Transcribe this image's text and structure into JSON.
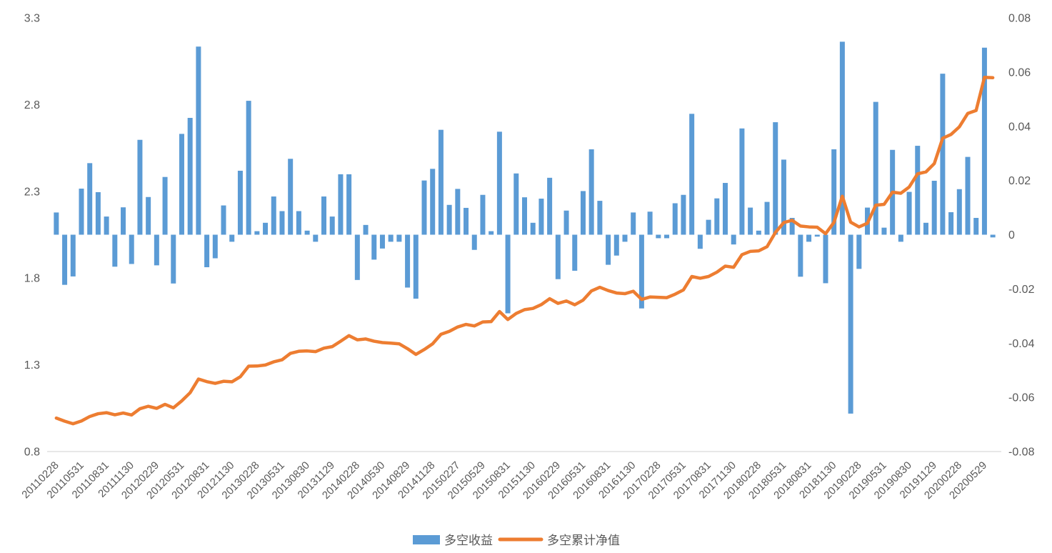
{
  "chart_data": {
    "type": "combo-bar-line",
    "title": "",
    "n_points": 113,
    "tick_every": 3,
    "legend_position": "bottom",
    "grid": "off",
    "bar_series": {
      "name": "多空收益",
      "axis": "right",
      "color": "#5B9BD5",
      "values": [
        0.0082,
        -0.0185,
        -0.0154,
        0.017,
        0.0264,
        0.0157,
        0.0067,
        -0.0118,
        0.0101,
        -0.0108,
        0.035,
        0.0139,
        -0.0113,
        0.0213,
        -0.018,
        0.0372,
        0.0431,
        0.0694,
        -0.012,
        -0.0087,
        0.0108,
        -0.0026,
        0.0236,
        0.0494,
        0.0013,
        0.0044,
        0.0141,
        0.0087,
        0.028,
        0.0087,
        0.0015,
        -0.0026,
        0.0141,
        0.0067,
        0.0223,
        0.0223,
        -0.0167,
        0.0036,
        -0.0092,
        -0.0051,
        -0.0026,
        -0.0026,
        -0.0195,
        -0.0236,
        0.02,
        0.0243,
        0.0387,
        0.011,
        0.0169,
        0.0099,
        -0.0056,
        0.0147,
        0.0013,
        0.038,
        -0.029,
        0.0226,
        0.0138,
        0.0044,
        0.0133,
        0.021,
        -0.0164,
        0.0089,
        -0.0133,
        0.0161,
        0.0315,
        0.0125,
        -0.0111,
        -0.0077,
        -0.0026,
        0.0082,
        -0.0272,
        0.0085,
        -0.0013,
        -0.0013,
        0.0116,
        0.0147,
        0.0446,
        -0.0052,
        0.0055,
        0.0134,
        0.0191,
        -0.0036,
        0.0392,
        0.01,
        0.0015,
        0.0121,
        0.0415,
        0.0277,
        0.0062,
        -0.0155,
        -0.0026,
        -0.0007,
        -0.0179,
        0.0315,
        0.0712,
        -0.066,
        -0.0126,
        0.01,
        0.049,
        0.0026,
        0.0313,
        -0.0026,
        0.0158,
        0.0328,
        0.0044,
        0.0199,
        0.0594,
        0.0083,
        0.0168,
        0.0287,
        0.0062,
        0.069,
        -0.001
      ]
    },
    "line_series": {
      "name": "多空累计净值",
      "axis": "left",
      "color": "#ED7D31",
      "values": [
        0.993,
        0.975,
        0.96,
        0.976,
        1.002,
        1.018,
        1.024,
        1.012,
        1.022,
        1.011,
        1.047,
        1.061,
        1.049,
        1.072,
        1.052,
        1.092,
        1.139,
        1.218,
        1.203,
        1.193,
        1.205,
        1.202,
        1.231,
        1.292,
        1.293,
        1.299,
        1.317,
        1.329,
        1.366,
        1.378,
        1.38,
        1.376,
        1.396,
        1.405,
        1.436,
        1.468,
        1.444,
        1.449,
        1.436,
        1.428,
        1.425,
        1.421,
        1.393,
        1.36,
        1.388,
        1.421,
        1.476,
        1.493,
        1.518,
        1.533,
        1.524,
        1.547,
        1.549,
        1.607,
        1.561,
        1.596,
        1.618,
        1.625,
        1.647,
        1.681,
        1.654,
        1.668,
        1.646,
        1.673,
        1.726,
        1.747,
        1.728,
        1.714,
        1.71,
        1.724,
        1.677,
        1.691,
        1.689,
        1.687,
        1.707,
        1.732,
        1.809,
        1.799,
        1.809,
        1.834,
        1.869,
        1.862,
        1.935,
        1.954,
        1.957,
        1.981,
        2.063,
        2.12,
        2.133,
        2.1,
        2.095,
        2.093,
        2.056,
        2.121,
        2.272,
        2.122,
        2.095,
        2.116,
        2.22,
        2.225,
        2.295,
        2.289,
        2.325,
        2.401,
        2.412,
        2.46,
        2.606,
        2.628,
        2.672,
        2.749,
        2.766,
        2.957,
        2.955
      ]
    },
    "x_tick_labels": [
      "20110228",
      "20110531",
      "20110831",
      "20111130",
      "20120229",
      "20120531",
      "20120831",
      "20121130",
      "20130228",
      "20130531",
      "20130830",
      "20131129",
      "20140228",
      "20140530",
      "20140829",
      "20141128",
      "20150227",
      "20150529",
      "20150831",
      "20151130",
      "20160229",
      "20160531",
      "20160831",
      "20161130",
      "20170228",
      "20170531",
      "20170831",
      "20171130",
      "20180228",
      "20180531",
      "20180831",
      "20181130",
      "20190228",
      "20190531",
      "20190830",
      "20191129",
      "20200228",
      "20200529"
    ],
    "left_axis": {
      "min": 0.8,
      "max": 3.3,
      "ticks": [
        "3.3",
        "2.8",
        "2.3",
        "1.8",
        "1.3",
        "0.8"
      ]
    },
    "right_axis": {
      "min": -0.08,
      "max": 0.08,
      "ticks": [
        "0.08",
        "0.06",
        "0.04",
        "0.02",
        "0",
        "-0.02",
        "-0.04",
        "-0.06",
        "-0.08"
      ]
    },
    "axis_line_color": "#d9d9d9",
    "label_color": "#595959",
    "legend": [
      {
        "label": "多空收益",
        "type": "bar",
        "color": "#5B9BD5"
      },
      {
        "label": "多空累计净值",
        "type": "line",
        "color": "#ED7D31"
      }
    ]
  }
}
